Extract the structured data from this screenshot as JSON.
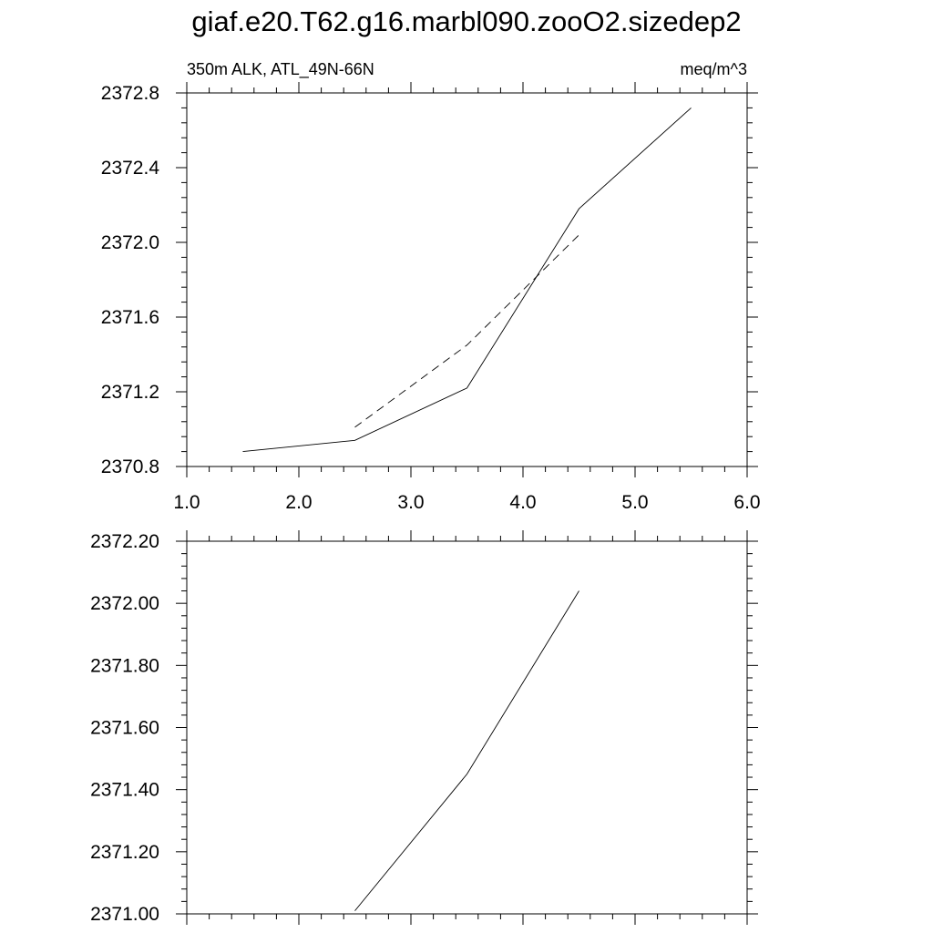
{
  "title": "giaf.e20.T62.g16.marbl090.zooO2.sizedep2",
  "chart_data": [
    {
      "type": "line",
      "left_label": "350m ALK, ATL_49N-66N",
      "right_label": "meq/m^3",
      "xlim": [
        1.0,
        6.0
      ],
      "ylim": [
        2370.8,
        2372.8
      ],
      "x_ticks": [
        "1.0",
        "2.0",
        "3.0",
        "4.0",
        "5.0",
        "6.0"
      ],
      "y_ticks": [
        "2370.8",
        "2371.2",
        "2371.6",
        "2372.0",
        "2372.4",
        "2372.8"
      ],
      "series": [
        {
          "style": "solid",
          "x": [
            1.5,
            2.5,
            3.5,
            4.5,
            5.5
          ],
          "y": [
            2370.88,
            2370.94,
            2371.22,
            2372.18,
            2372.72
          ]
        },
        {
          "style": "dashed",
          "x": [
            2.5,
            3.5,
            4.5
          ],
          "y": [
            2371.01,
            2371.45,
            2372.04
          ]
        }
      ]
    },
    {
      "type": "line",
      "xlim": [
        1.0,
        6.0
      ],
      "ylim": [
        2371.0,
        2372.2
      ],
      "y_ticks": [
        "2371.00",
        "2371.20",
        "2371.40",
        "2371.60",
        "2371.80",
        "2372.00",
        "2372.20"
      ],
      "series": [
        {
          "style": "solid",
          "x": [
            2.5,
            3.5,
            4.5
          ],
          "y": [
            2371.01,
            2371.45,
            2372.04
          ]
        }
      ]
    }
  ]
}
